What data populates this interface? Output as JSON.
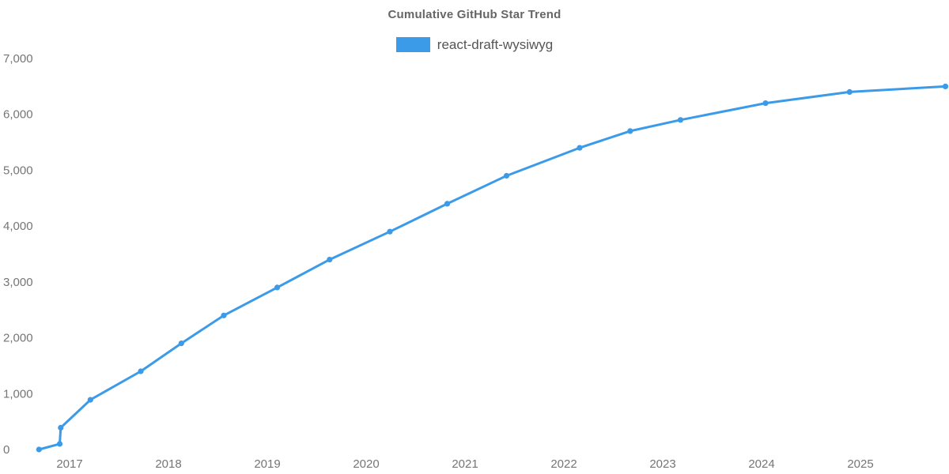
{
  "colors": {
    "background": "#ffffff",
    "series_blue": "#3C9BE8",
    "title_text": "#666666",
    "legend_text": "#555555",
    "axis_text": "#757575"
  },
  "chart_data": {
    "type": "line",
    "title": "Cumulative GitHub Star Trend",
    "xlabel": "",
    "ylabel": "",
    "grid": false,
    "legend_position": "top",
    "xlim": [
      2016.6,
      2025.95
    ],
    "ylim": [
      0,
      7000
    ],
    "x_ticks": [
      {
        "value": 2017,
        "label": "2017"
      },
      {
        "value": 2018,
        "label": "2018"
      },
      {
        "value": 2019,
        "label": "2019"
      },
      {
        "value": 2020,
        "label": "2020"
      },
      {
        "value": 2021,
        "label": "2021"
      },
      {
        "value": 2022,
        "label": "2022"
      },
      {
        "value": 2023,
        "label": "2023"
      },
      {
        "value": 2024,
        "label": "2024"
      },
      {
        "value": 2025,
        "label": "2025"
      }
    ],
    "y_ticks": [
      {
        "value": 0,
        "label": "0"
      },
      {
        "value": 1000,
        "label": "1,000"
      },
      {
        "value": 2000,
        "label": "2,000"
      },
      {
        "value": 3000,
        "label": "3,000"
      },
      {
        "value": 4000,
        "label": "4,000"
      },
      {
        "value": 5000,
        "label": "5,000"
      },
      {
        "value": 6000,
        "label": "6,000"
      },
      {
        "value": 7000,
        "label": "7,000"
      }
    ],
    "series": [
      {
        "name": "react-draft-wysiwyg",
        "color": "#3C9BE8",
        "marker": "circle",
        "points": [
          {
            "x": 2016.69,
            "y": 0
          },
          {
            "x": 2016.9,
            "y": 100
          },
          {
            "x": 2016.91,
            "y": 390
          },
          {
            "x": 2017.21,
            "y": 890
          },
          {
            "x": 2017.72,
            "y": 1400
          },
          {
            "x": 2018.13,
            "y": 1900
          },
          {
            "x": 2018.56,
            "y": 2400
          },
          {
            "x": 2019.1,
            "y": 2900
          },
          {
            "x": 2019.63,
            "y": 3400
          },
          {
            "x": 2020.24,
            "y": 3900
          },
          {
            "x": 2020.82,
            "y": 4400
          },
          {
            "x": 2021.42,
            "y": 4900
          },
          {
            "x": 2022.16,
            "y": 5400
          },
          {
            "x": 2022.67,
            "y": 5700
          },
          {
            "x": 2023.18,
            "y": 5900
          },
          {
            "x": 2024.04,
            "y": 6200
          },
          {
            "x": 2024.89,
            "y": 6400
          },
          {
            "x": 2025.86,
            "y": 6500
          }
        ]
      }
    ]
  }
}
